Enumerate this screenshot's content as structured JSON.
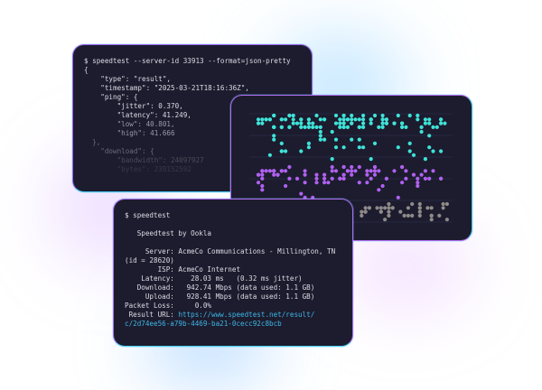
{
  "json_terminal": {
    "command": "$ speedtest --server-id 33913 --format=json-pretty",
    "lines": [
      "{",
      "    \"type\": \"result\",",
      "    \"timestamp\": \"2025-03-21T18:16:36Z\",",
      "    \"ping\": {",
      "        \"jitter\": 0.370,",
      "        \"latency\": 41.249,",
      "        \"low\": 40.801,",
      "        \"high\": 41.666",
      "  },",
      "    \"download\": {",
      "        \"bandwidth\": 24097927",
      "        \"bytes\": 239152592"
    ]
  },
  "cli_terminal": {
    "command": "$ speedtest",
    "title": "   Speedtest by Ookla",
    "server": "     Server: AcmeCo Communications - Millington, TN",
    "server_id": "(id = 28620)",
    "isp": "        ISP: AcmeCo Internet",
    "latency": "    Latency:    28.03 ms   (0.32 ms jitter)",
    "download": "   Download:   942.74 Mbps (data used: 1.1 GB)",
    "upload": "     Upload:   928.41 Mbps (data used: 1.1 GB)",
    "packet_loss": "Packet Loss:     0.0%",
    "result_label": " Result URL: ",
    "result_url_1": "https://www.speedtest.net/result/",
    "result_url_2": "c/2d74ee56-a79b-4469-ba21-0cecc92c8bcb"
  },
  "colors": {
    "cyan": "#3fe3d8",
    "purple": "#b061f0",
    "grey": "#8e8a88",
    "link": "#3fb6e6"
  }
}
